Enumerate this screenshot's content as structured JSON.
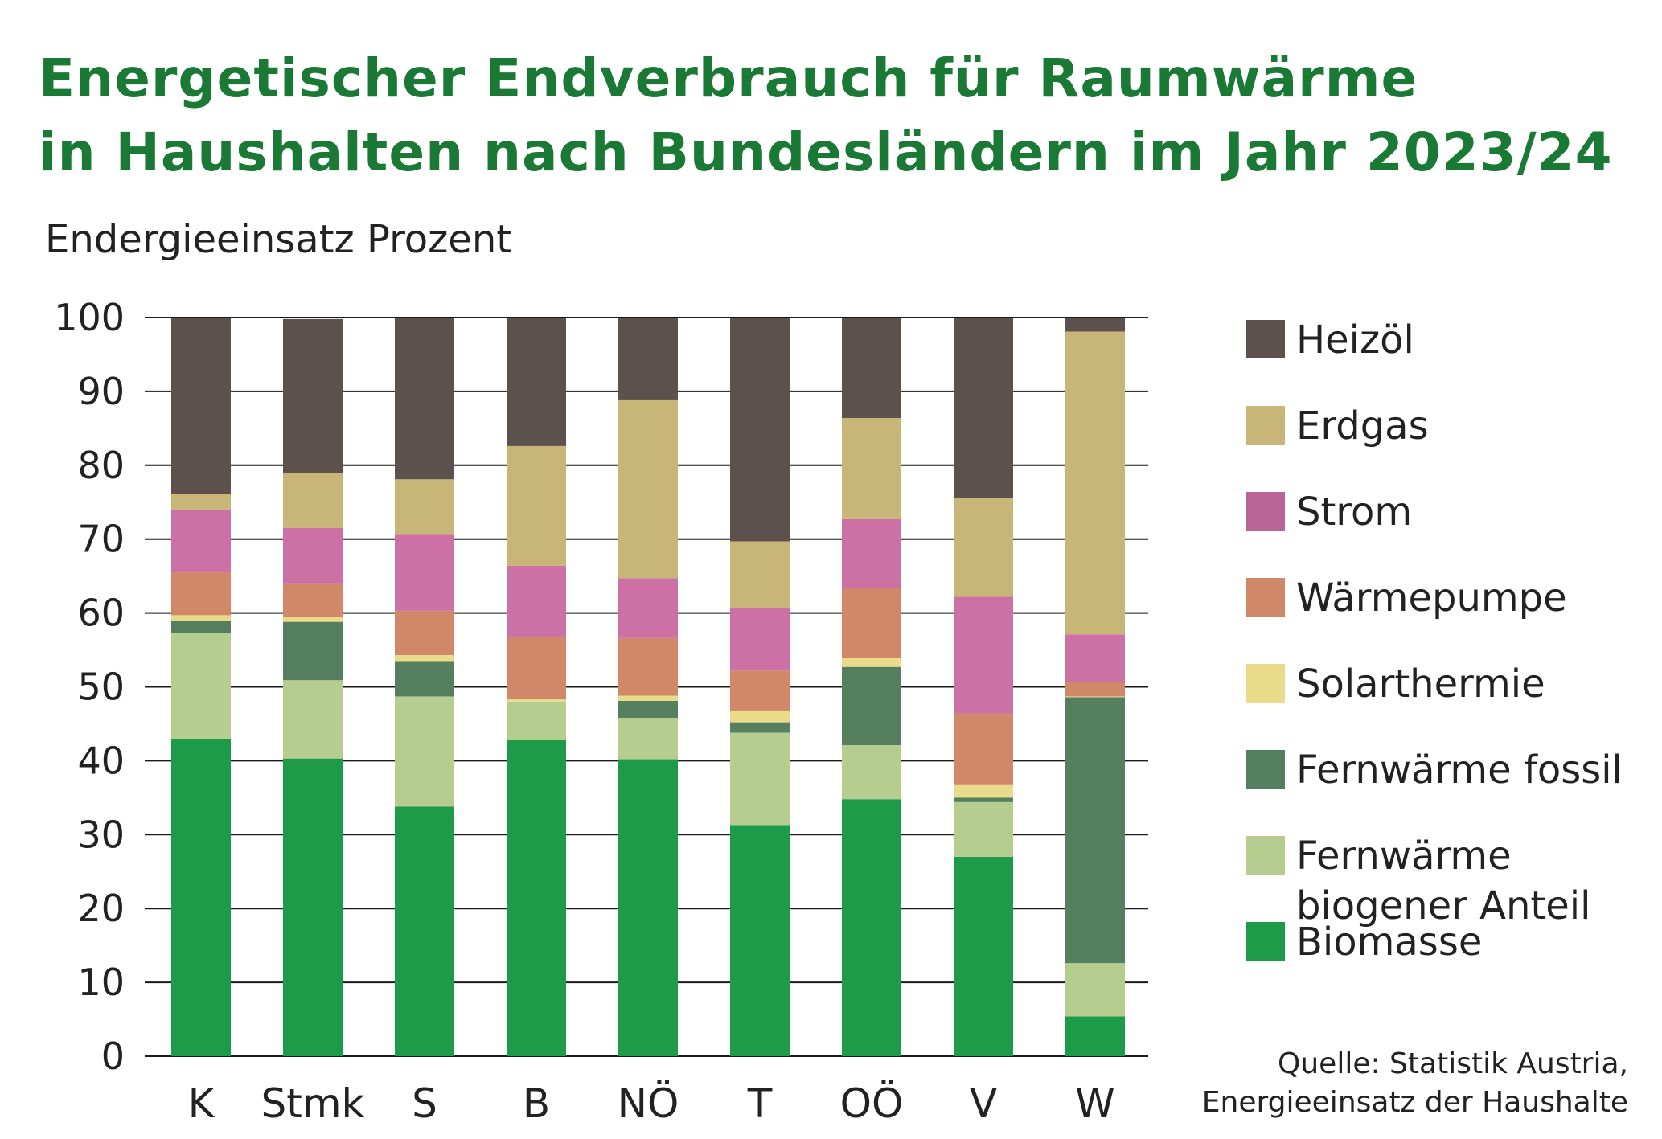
{
  "title": {
    "line1": "Energetischer Endverbrauch für Raumwärme",
    "line2": "in Haushalten nach Bundesländern im Jahr 2023/24"
  },
  "y_axis_label": "Endergieeinsatz Prozent",
  "source": {
    "line1": "Quelle: Statistik Austria,",
    "line2": "Energieeinsatz der Haushalte"
  },
  "chart_data": {
    "type": "bar",
    "stacked": true,
    "ylim": [
      0,
      100
    ],
    "yticks": [
      0,
      10,
      20,
      30,
      40,
      50,
      60,
      70,
      80,
      90,
      100
    ],
    "grid": true,
    "legend_position": "right",
    "categories": [
      "K",
      "Stmk",
      "S",
      "B",
      "NÖ",
      "T",
      "OÖ",
      "V",
      "W"
    ],
    "series": [
      {
        "name": "Biomasse",
        "color": "#1e9b48",
        "values": [
          43.0,
          40.3,
          33.8,
          42.8,
          40.2,
          31.3,
          34.8,
          27.0,
          5.4
        ]
      },
      {
        "name": "Fernwärme biogener Anteil",
        "display_name": [
          "Fernwärme",
          "biogener Anteil"
        ],
        "color": "#b5ce90",
        "values": [
          14.3,
          10.6,
          14.9,
          5.2,
          5.6,
          12.5,
          7.3,
          7.4,
          7.2
        ]
      },
      {
        "name": "Fernwärme fossil",
        "color": "#557f5e",
        "values": [
          1.6,
          7.9,
          4.8,
          0.0,
          2.3,
          1.4,
          10.6,
          0.6,
          36.0
        ]
      },
      {
        "name": "Solarthermie",
        "color": "#e8dc8a",
        "values": [
          0.8,
          0.7,
          0.8,
          0.3,
          0.7,
          1.6,
          1.2,
          1.8,
          0.1
        ]
      },
      {
        "name": "Wärmepumpe",
        "color": "#d08868",
        "values": [
          5.8,
          4.5,
          6.0,
          8.4,
          7.8,
          5.4,
          9.5,
          9.6,
          1.9
        ]
      },
      {
        "name": "Strom",
        "color": "#cc70a5",
        "values": [
          8.5,
          7.5,
          10.4,
          9.7,
          8.1,
          8.5,
          9.3,
          15.8,
          6.5
        ]
      },
      {
        "name": "Erdgas",
        "color": "#c7b677",
        "values": [
          2.1,
          7.5,
          7.4,
          16.2,
          24.1,
          9.0,
          13.7,
          13.4,
          41.0
        ]
      },
      {
        "name": "Heizöl",
        "color": "#5c514d",
        "values": [
          23.9,
          20.8,
          21.9,
          17.4,
          11.2,
          30.3,
          13.6,
          24.4,
          1.9
        ]
      }
    ],
    "legend_order": [
      "Heizöl",
      "Erdgas",
      "Strom",
      "Wärmepumpe",
      "Solarthermie",
      "Fernwärme fossil",
      "Fernwärme biogener Anteil",
      "Biomasse"
    ],
    "legend_swatch_colors": {
      "Strom": "#b86496"
    }
  }
}
